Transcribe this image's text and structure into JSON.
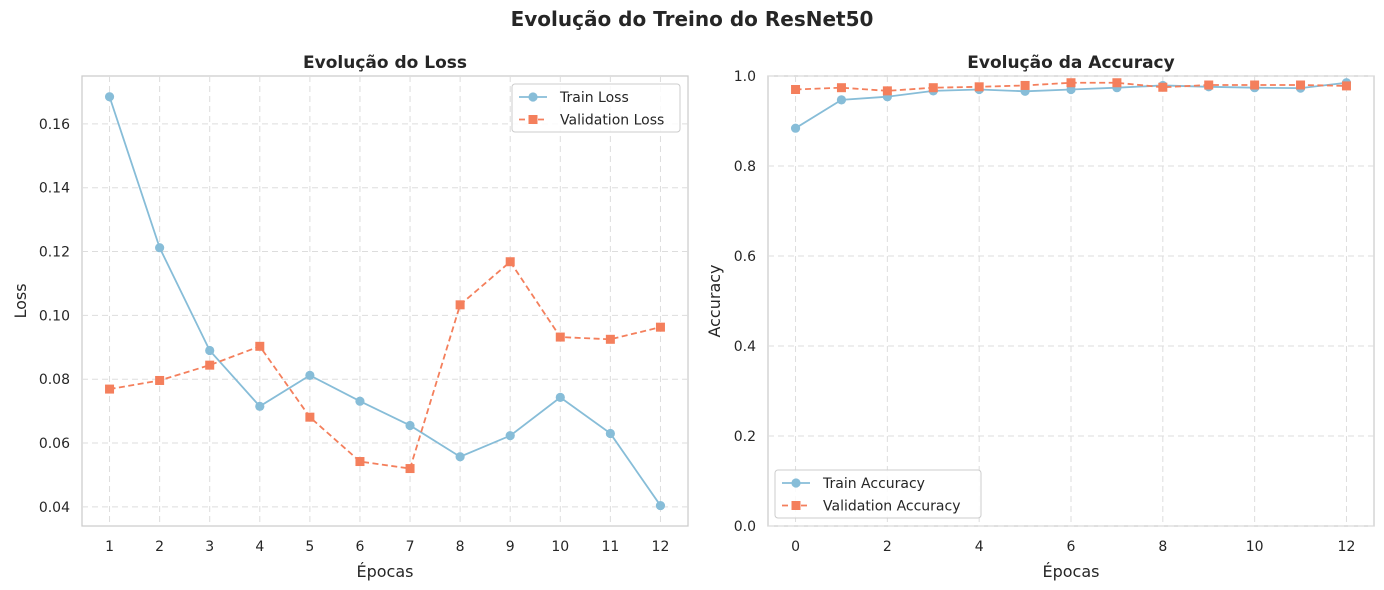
{
  "figure_title": "Evolução do Treino do ResNet50",
  "colors": {
    "train": "#87bdd8",
    "validation": "#f47f5c"
  },
  "chart_data": [
    {
      "type": "line",
      "title": "Evolução do Loss",
      "xlabel": "Épocas",
      "ylabel": "Loss",
      "x": [
        1,
        2,
        3,
        4,
        5,
        6,
        7,
        8,
        9,
        10,
        11,
        12
      ],
      "xlim": [
        0.45,
        12.55
      ],
      "ylim": [
        0.034,
        0.175
      ],
      "xticks": [
        1,
        2,
        3,
        4,
        5,
        6,
        7,
        8,
        9,
        10,
        11,
        12
      ],
      "yticks": [
        0.04,
        0.06,
        0.08,
        0.1,
        0.12,
        0.14,
        0.16
      ],
      "ytick_labels": [
        "0.04",
        "0.06",
        "0.08",
        "0.10",
        "0.12",
        "0.14",
        "0.16"
      ],
      "grid": true,
      "legend_position": "top-right",
      "series": [
        {
          "name": "Train Loss",
          "style": "solid",
          "marker": "circle",
          "color": "#87bdd8",
          "values": [
            0.1685,
            0.1212,
            0.089,
            0.0715,
            0.0812,
            0.0731,
            0.0655,
            0.0557,
            0.0623,
            0.0743,
            0.063,
            0.0404
          ]
        },
        {
          "name": "Validation Loss",
          "style": "dashed",
          "marker": "square",
          "color": "#f47f5c",
          "values": [
            0.0769,
            0.0796,
            0.0844,
            0.0903,
            0.0681,
            0.0542,
            0.052,
            0.1033,
            0.1168,
            0.0932,
            0.0925,
            0.0963
          ]
        }
      ]
    },
    {
      "type": "line",
      "title": "Evolução da Accuracy",
      "xlabel": "Épocas",
      "ylabel": "Accuracy",
      "x": [
        0,
        1,
        2,
        3,
        4,
        5,
        6,
        7,
        8,
        9,
        10,
        11,
        12
      ],
      "xlim": [
        -0.6,
        12.6
      ],
      "ylim": [
        0,
        1
      ],
      "xticks": [
        0,
        2,
        4,
        6,
        8,
        10,
        12
      ],
      "yticks": [
        0.0,
        0.2,
        0.4,
        0.6,
        0.8,
        1.0
      ],
      "ytick_labels": [
        "0.0",
        "0.2",
        "0.4",
        "0.6",
        "0.8",
        "1.0"
      ],
      "grid": true,
      "legend_position": "bottom-left",
      "series": [
        {
          "name": "Train Accuracy",
          "style": "solid",
          "marker": "circle",
          "color": "#87bdd8",
          "values": [
            0.884,
            0.947,
            0.954,
            0.967,
            0.97,
            0.966,
            0.97,
            0.974,
            0.979,
            0.976,
            0.974,
            0.973,
            0.985
          ]
        },
        {
          "name": "Validation Accuracy",
          "style": "dashed",
          "marker": "square",
          "color": "#f47f5c",
          "values": [
            0.97,
            0.974,
            0.967,
            0.974,
            0.976,
            0.979,
            0.985,
            0.985,
            0.975,
            0.98,
            0.98,
            0.98,
            0.978
          ]
        }
      ]
    }
  ]
}
